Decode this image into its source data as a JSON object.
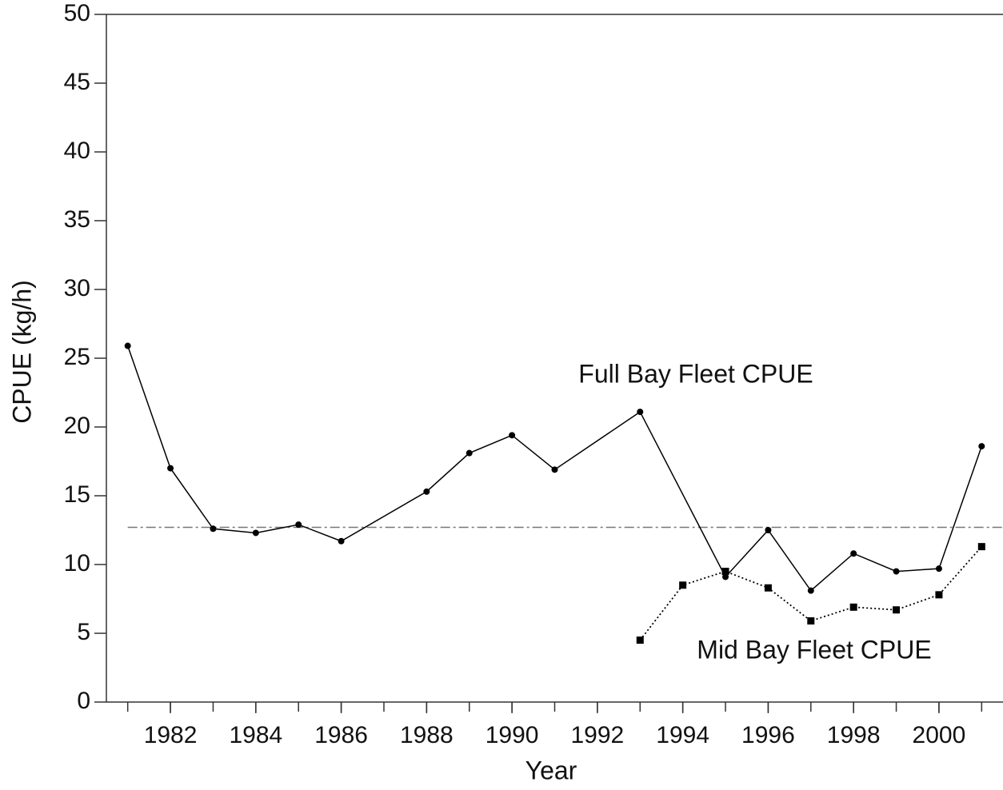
{
  "chart_data": {
    "type": "line",
    "xlabel": "Year",
    "ylabel": "CPUE (kg/h)",
    "xlim": [
      1980.5,
      2001.5
    ],
    "ylim": [
      0,
      50
    ],
    "xticks": [
      1982,
      1984,
      1986,
      1988,
      1990,
      1992,
      1994,
      1996,
      1998,
      2000
    ],
    "xminorticks": [
      1981,
      1982,
      1983,
      1984,
      1985,
      1986,
      1987,
      1988,
      1989,
      1990,
      1991,
      1992,
      1993,
      1994,
      1995,
      1996,
      1997,
      1998,
      1999,
      2000,
      2001
    ],
    "yticks": [
      0,
      5,
      10,
      15,
      20,
      25,
      30,
      35,
      40,
      45,
      50
    ],
    "reference_line": {
      "y": 12.7,
      "xlim": [
        1981,
        2001.5
      ],
      "color": "#777777",
      "style": "dash-dot"
    },
    "series": [
      {
        "name": "Full Bay Fleet CPUE",
        "color": "#000000",
        "marker": "circle",
        "line": "solid",
        "x": [
          1981,
          1982,
          1983,
          1984,
          1985,
          1986,
          1988,
          1989,
          1990,
          1991,
          1993,
          1995,
          1996,
          1997,
          1998,
          1999,
          2000,
          2001
        ],
        "values": [
          25.9,
          17.0,
          12.6,
          12.3,
          12.9,
          11.7,
          15.3,
          18.1,
          19.4,
          16.9,
          21.1,
          9.1,
          12.5,
          8.1,
          10.8,
          9.5,
          9.7,
          18.6
        ]
      },
      {
        "name": "Mid Bay Fleet CPUE",
        "color": "#000000",
        "marker": "square",
        "line": "dotted",
        "x": [
          1993,
          1994,
          1995,
          1996,
          1997,
          1998,
          1999,
          2000,
          2001
        ],
        "values": [
          4.5,
          8.5,
          9.5,
          8.3,
          5.9,
          6.9,
          6.7,
          7.8,
          11.3
        ]
      }
    ]
  }
}
